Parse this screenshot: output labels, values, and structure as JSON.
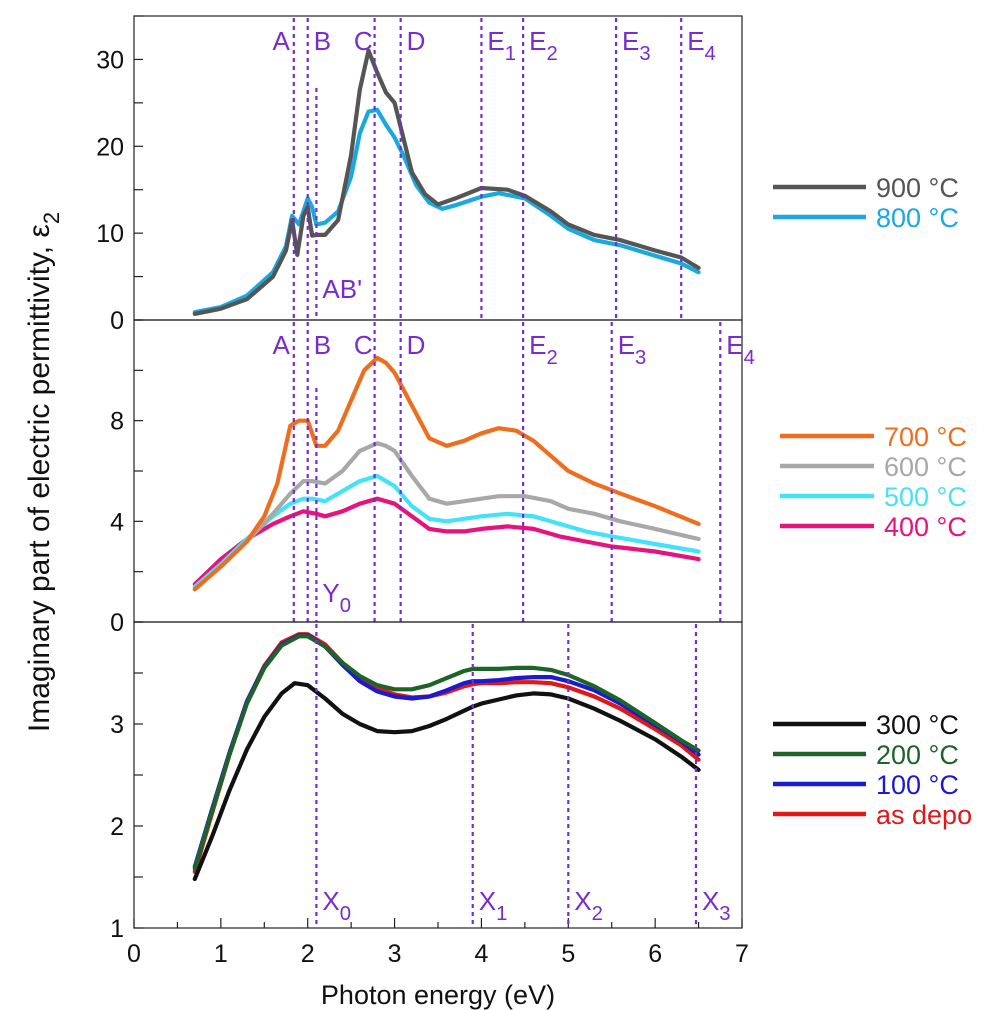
{
  "chart_data": [
    {
      "type": "line",
      "panel": "top",
      "xlim": [
        0,
        7
      ],
      "ylim": [
        0,
        35
      ],
      "yticks": [
        "0",
        "10",
        "20",
        "30"
      ],
      "transitions": [
        {
          "label": "A",
          "sub": "",
          "x": 1.84
        },
        {
          "label": "B",
          "sub": "",
          "x": 2.0
        },
        {
          "label": "C",
          "sub": "",
          "x": 2.77
        },
        {
          "label": "D",
          "sub": "",
          "x": 3.07
        },
        {
          "label": "E",
          "sub": "1",
          "x": 4.0
        },
        {
          "label": "E",
          "sub": "2",
          "x": 4.48
        },
        {
          "label": "E",
          "sub": "3",
          "x": 5.55
        },
        {
          "label": "E",
          "sub": "4",
          "x": 6.3
        }
      ],
      "extra_line": {
        "label": "AB'",
        "x": 2.1
      },
      "series": [
        {
          "name": "900 °C",
          "color": "#555555",
          "x": [
            0.7,
            1.0,
            1.3,
            1.6,
            1.75,
            1.82,
            1.88,
            1.95,
            2.0,
            2.05,
            2.1,
            2.2,
            2.35,
            2.5,
            2.6,
            2.7,
            2.8,
            2.9,
            3.0,
            3.1,
            3.2,
            3.35,
            3.5,
            3.7,
            4.0,
            4.3,
            4.5,
            4.8,
            5.0,
            5.3,
            5.6,
            6.0,
            6.3,
            6.5
          ],
          "y": [
            0.7,
            1.3,
            2.4,
            5.0,
            8.0,
            11.5,
            7.5,
            12.0,
            13.0,
            9.7,
            9.8,
            9.8,
            11.5,
            19.0,
            26.5,
            31.0,
            28.5,
            26.2,
            25.0,
            21.0,
            17.0,
            14.5,
            13.3,
            14.0,
            15.2,
            15.0,
            14.3,
            12.5,
            11.0,
            9.8,
            9.2,
            8.0,
            7.2,
            6.0
          ]
        },
        {
          "name": "800 °C",
          "color": "#1aa8e0",
          "x": [
            0.7,
            1.0,
            1.3,
            1.6,
            1.75,
            1.82,
            1.9,
            2.0,
            2.05,
            2.1,
            2.2,
            2.35,
            2.5,
            2.6,
            2.7,
            2.8,
            2.9,
            3.0,
            3.1,
            3.25,
            3.4,
            3.55,
            3.7,
            4.0,
            4.2,
            4.5,
            4.8,
            5.0,
            5.3,
            5.6,
            6.0,
            6.3,
            6.5
          ],
          "y": [
            0.9,
            1.5,
            2.8,
            5.5,
            8.5,
            12.0,
            11.0,
            14.0,
            13.0,
            11.0,
            11.2,
            12.5,
            16.5,
            21.5,
            24.0,
            24.2,
            22.5,
            21.0,
            19.0,
            15.5,
            13.5,
            12.8,
            13.2,
            14.2,
            14.6,
            14.0,
            12.0,
            10.5,
            9.2,
            8.6,
            7.4,
            6.5,
            5.5
          ]
        }
      ]
    },
    {
      "type": "line",
      "panel": "middle",
      "xlim": [
        0,
        7
      ],
      "ylim": [
        0,
        12
      ],
      "yticks": [
        "0",
        "4",
        "8"
      ],
      "transitions": [
        {
          "label": "A",
          "sub": "",
          "x": 1.84
        },
        {
          "label": "B",
          "sub": "",
          "x": 2.0
        },
        {
          "label": "C",
          "sub": "",
          "x": 2.77
        },
        {
          "label": "D",
          "sub": "",
          "x": 3.07
        },
        {
          "label": "E",
          "sub": "2",
          "x": 4.48
        },
        {
          "label": "E",
          "sub": "3",
          "x": 5.5
        },
        {
          "label": "E",
          "sub": "4",
          "x": 6.75
        }
      ],
      "extra_line": {
        "label": "Y",
        "sub": "0",
        "x": 2.1
      },
      "series": [
        {
          "name": "700 °C",
          "color": "#ee6e1e",
          "x": [
            0.7,
            1.0,
            1.3,
            1.5,
            1.65,
            1.8,
            1.9,
            2.0,
            2.1,
            2.2,
            2.35,
            2.5,
            2.65,
            2.8,
            2.9,
            3.0,
            3.2,
            3.4,
            3.6,
            3.8,
            4.0,
            4.2,
            4.4,
            4.6,
            4.8,
            5.0,
            5.3,
            5.6,
            6.0,
            6.5
          ],
          "y": [
            1.3,
            2.2,
            3.2,
            4.2,
            5.5,
            7.8,
            8.0,
            8.0,
            7.0,
            7.0,
            7.6,
            8.8,
            10.0,
            10.5,
            10.3,
            9.9,
            8.6,
            7.3,
            7.0,
            7.2,
            7.5,
            7.7,
            7.6,
            7.2,
            6.6,
            6.0,
            5.5,
            5.1,
            4.6,
            3.9
          ]
        },
        {
          "name": "600 °C",
          "color": "#a8a8a8",
          "x": [
            0.7,
            1.0,
            1.3,
            1.6,
            1.8,
            1.95,
            2.05,
            2.2,
            2.4,
            2.6,
            2.8,
            2.9,
            3.0,
            3.2,
            3.4,
            3.6,
            3.8,
            4.0,
            4.2,
            4.5,
            4.8,
            5.0,
            5.3,
            5.6,
            6.0,
            6.5
          ],
          "y": [
            1.3,
            2.2,
            3.2,
            4.3,
            5.1,
            5.6,
            5.6,
            5.5,
            6.0,
            6.8,
            7.1,
            7.0,
            6.8,
            5.8,
            4.9,
            4.7,
            4.8,
            4.9,
            5.0,
            5.0,
            4.8,
            4.5,
            4.3,
            4.0,
            3.7,
            3.3
          ]
        },
        {
          "name": "500 °C",
          "color": "#44e2f8",
          "x": [
            0.7,
            1.0,
            1.3,
            1.6,
            1.8,
            1.95,
            2.05,
            2.2,
            2.4,
            2.6,
            2.8,
            2.9,
            3.0,
            3.2,
            3.4,
            3.6,
            3.8,
            4.0,
            4.3,
            4.6,
            4.9,
            5.2,
            5.5,
            6.0,
            6.5
          ],
          "y": [
            1.4,
            2.3,
            3.3,
            4.2,
            4.7,
            4.9,
            4.9,
            4.8,
            5.2,
            5.6,
            5.8,
            5.6,
            5.4,
            4.6,
            4.1,
            4.0,
            4.1,
            4.2,
            4.3,
            4.2,
            3.9,
            3.6,
            3.4,
            3.1,
            2.8
          ]
        },
        {
          "name": "400 °C",
          "color": "#e8127c",
          "x": [
            0.7,
            1.0,
            1.3,
            1.6,
            1.8,
            1.95,
            2.1,
            2.2,
            2.4,
            2.6,
            2.8,
            2.9,
            3.0,
            3.2,
            3.4,
            3.6,
            3.8,
            4.0,
            4.3,
            4.6,
            4.9,
            5.2,
            5.5,
            6.0,
            6.5
          ],
          "y": [
            1.5,
            2.5,
            3.3,
            3.9,
            4.2,
            4.4,
            4.3,
            4.2,
            4.4,
            4.7,
            4.9,
            4.8,
            4.7,
            4.2,
            3.7,
            3.6,
            3.6,
            3.7,
            3.8,
            3.7,
            3.4,
            3.2,
            3.0,
            2.8,
            2.5
          ]
        }
      ]
    },
    {
      "type": "line",
      "panel": "bottom",
      "xlim": [
        0,
        7
      ],
      "ylim": [
        1,
        4
      ],
      "yticks": [
        "1",
        "2",
        "3"
      ],
      "transitions": [
        {
          "label": "X",
          "sub": "0",
          "x": 2.1
        },
        {
          "label": "X",
          "sub": "1",
          "x": 3.9
        },
        {
          "label": "X",
          "sub": "2",
          "x": 5.0
        },
        {
          "label": "X",
          "sub": "3",
          "x": 6.47
        }
      ],
      "xlabel": "Photon energy (eV)",
      "xticks": [
        "0",
        "1",
        "2",
        "3",
        "4",
        "5",
        "6",
        "7"
      ],
      "ylabel_main": "Imaginary part of electric permittivity, ε",
      "ylabel_sub": "2",
      "series": [
        {
          "name": "300 °C",
          "color": "#111111",
          "x": [
            0.7,
            0.9,
            1.1,
            1.3,
            1.5,
            1.7,
            1.85,
            2.0,
            2.2,
            2.4,
            2.6,
            2.8,
            3.0,
            3.2,
            3.4,
            3.6,
            3.8,
            3.9,
            4.0,
            4.2,
            4.4,
            4.6,
            4.8,
            5.0,
            5.3,
            5.6,
            6.0,
            6.3,
            6.5
          ],
          "y": [
            1.48,
            1.9,
            2.35,
            2.75,
            3.07,
            3.3,
            3.4,
            3.38,
            3.25,
            3.1,
            3.0,
            2.93,
            2.92,
            2.93,
            2.98,
            3.05,
            3.13,
            3.17,
            3.2,
            3.24,
            3.28,
            3.3,
            3.29,
            3.25,
            3.15,
            3.03,
            2.85,
            2.68,
            2.55
          ]
        },
        {
          "name": "200 °C",
          "color": "#1e6428",
          "x": [
            0.7,
            0.9,
            1.1,
            1.3,
            1.5,
            1.7,
            1.9,
            2.0,
            2.2,
            2.4,
            2.6,
            2.8,
            3.0,
            3.2,
            3.4,
            3.6,
            3.8,
            3.9,
            4.0,
            4.2,
            4.4,
            4.6,
            4.8,
            5.0,
            5.3,
            5.6,
            6.0,
            6.3,
            6.5
          ],
          "y": [
            1.58,
            2.15,
            2.7,
            3.2,
            3.55,
            3.77,
            3.86,
            3.86,
            3.76,
            3.6,
            3.47,
            3.38,
            3.34,
            3.34,
            3.38,
            3.45,
            3.52,
            3.54,
            3.54,
            3.54,
            3.55,
            3.55,
            3.53,
            3.48,
            3.37,
            3.23,
            3.01,
            2.84,
            2.74
          ]
        },
        {
          "name": "100 °C",
          "color": "#1a1ad0",
          "x": [
            0.7,
            0.9,
            1.1,
            1.3,
            1.5,
            1.7,
            1.9,
            2.0,
            2.2,
            2.4,
            2.6,
            2.8,
            3.0,
            3.2,
            3.4,
            3.6,
            3.8,
            3.9,
            4.0,
            4.2,
            4.4,
            4.6,
            4.8,
            5.0,
            5.3,
            5.6,
            6.0,
            6.3,
            6.5
          ],
          "y": [
            1.6,
            2.17,
            2.72,
            3.22,
            3.56,
            3.78,
            3.87,
            3.87,
            3.76,
            3.58,
            3.42,
            3.32,
            3.27,
            3.25,
            3.27,
            3.33,
            3.4,
            3.42,
            3.42,
            3.43,
            3.45,
            3.46,
            3.46,
            3.42,
            3.33,
            3.2,
            2.99,
            2.83,
            2.7
          ]
        },
        {
          "name": "as depo",
          "color": "#e01818",
          "x": [
            0.7,
            0.9,
            1.1,
            1.3,
            1.5,
            1.7,
            1.9,
            2.0,
            2.2,
            2.4,
            2.6,
            2.8,
            3.0,
            3.2,
            3.4,
            3.6,
            3.8,
            3.9,
            4.0,
            4.2,
            4.4,
            4.6,
            4.8,
            5.0,
            5.3,
            5.6,
            6.0,
            6.3,
            6.5
          ],
          "y": [
            1.55,
            2.13,
            2.7,
            3.22,
            3.57,
            3.8,
            3.88,
            3.88,
            3.78,
            3.6,
            3.45,
            3.35,
            3.29,
            3.26,
            3.27,
            3.31,
            3.37,
            3.39,
            3.4,
            3.4,
            3.41,
            3.41,
            3.4,
            3.36,
            3.27,
            3.15,
            2.95,
            2.79,
            2.65
          ]
        }
      ]
    }
  ]
}
